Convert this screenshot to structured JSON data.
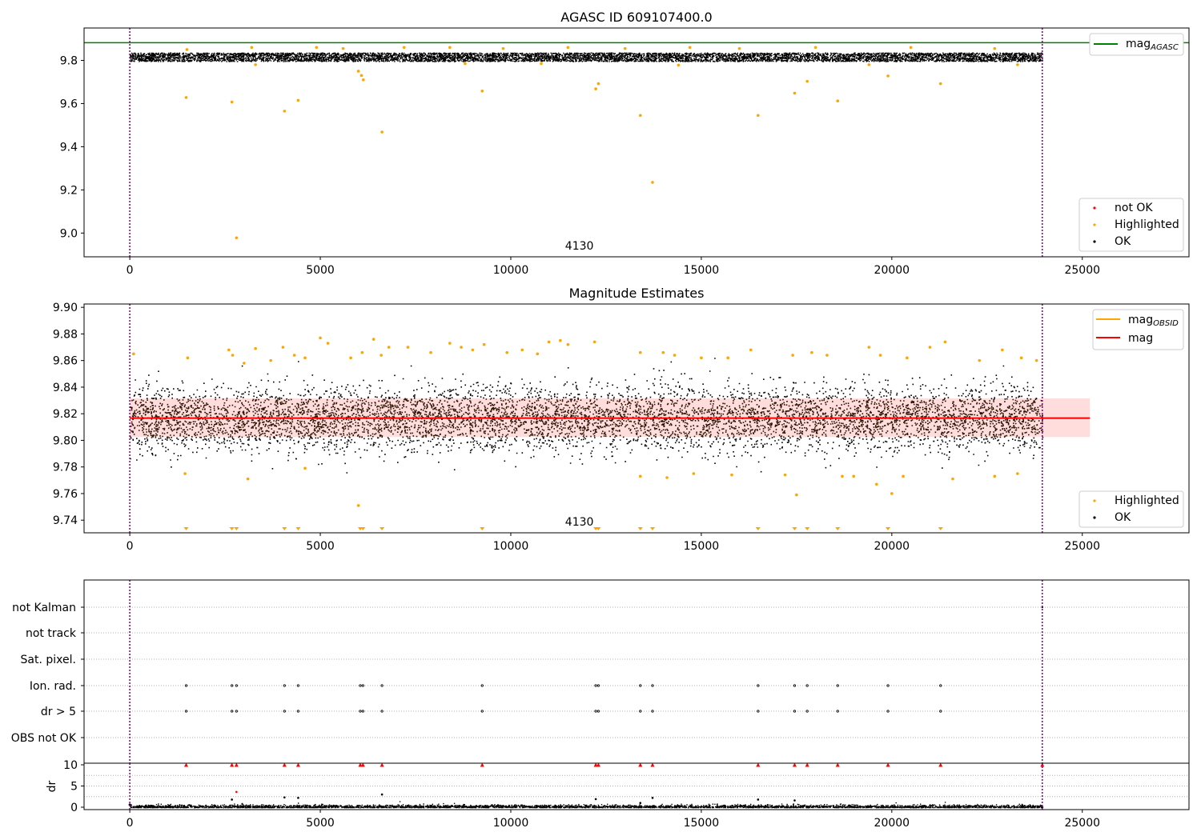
{
  "chart_data": [
    {
      "type": "scatter",
      "title": "AGASC ID 609107400.0",
      "xlim": [
        -1200,
        27800
      ],
      "ylim": [
        8.89,
        9.95
      ],
      "x_ticks": [
        0,
        5000,
        10000,
        15000,
        20000,
        25000
      ],
      "y_ticks": [
        9.0,
        9.2,
        9.4,
        9.6,
        9.8
      ],
      "x_tick_labels": [
        "0",
        "5000",
        "10000",
        "15000",
        "20000",
        "25000"
      ],
      "y_tick_labels": [
        "9.0",
        "9.2",
        "9.4",
        "9.6",
        "9.8"
      ],
      "reference_line": {
        "label": "mag",
        "label_sub": "AGASC",
        "y": 9.882,
        "color": "#008000"
      },
      "obs_boundaries": [
        0,
        23950
      ],
      "boundary_color": "#800080",
      "annotation": {
        "text": "4130",
        "x": 11800
      },
      "ok_band": {
        "center": 9.817,
        "half_width": 0.02,
        "x_end": 23950
      },
      "legend_lines": [
        {
          "label": "mag",
          "sub": "AGASC",
          "color": "#008000"
        }
      ],
      "legend_points": [
        {
          "label": "not OK",
          "color": "#ff0000"
        },
        {
          "label": "Highlighted",
          "color": "#ffa500"
        },
        {
          "label": "OK",
          "color": "#000000"
        }
      ],
      "highlighted_points": [
        [
          1480,
          9.628
        ],
        [
          2680,
          9.607
        ],
        [
          2800,
          8.978
        ],
        [
          4060,
          9.565
        ],
        [
          4420,
          9.615
        ],
        [
          6000,
          9.75
        ],
        [
          6080,
          9.73
        ],
        [
          6130,
          9.71
        ],
        [
          6620,
          9.468
        ],
        [
          9250,
          9.658
        ],
        [
          12230,
          9.668
        ],
        [
          12300,
          9.692
        ],
        [
          13400,
          9.545
        ],
        [
          13720,
          9.235
        ],
        [
          16490,
          9.545
        ],
        [
          17450,
          9.648
        ],
        [
          17780,
          9.703
        ],
        [
          18580,
          9.612
        ],
        [
          19900,
          9.728
        ],
        [
          21280,
          9.692
        ],
        [
          1500,
          9.85
        ],
        [
          3200,
          9.86
        ],
        [
          4900,
          9.86
        ],
        [
          5600,
          9.855
        ],
        [
          7200,
          9.86
        ],
        [
          8400,
          9.86
        ],
        [
          9800,
          9.855
        ],
        [
          11500,
          9.86
        ],
        [
          13000,
          9.855
        ],
        [
          14700,
          9.86
        ],
        [
          16000,
          9.855
        ],
        [
          18000,
          9.86
        ],
        [
          19400,
          9.78
        ],
        [
          20500,
          9.86
        ],
        [
          22700,
          9.855
        ],
        [
          23300,
          9.78
        ],
        [
          3300,
          9.78
        ],
        [
          8800,
          9.785
        ],
        [
          10800,
          9.785
        ],
        [
          14400,
          9.778
        ]
      ]
    },
    {
      "type": "scatter",
      "title": "Magnitude Estimates",
      "xlim": [
        -1200,
        27800
      ],
      "ylim": [
        9.7305,
        9.9025
      ],
      "x_ticks": [
        0,
        5000,
        10000,
        15000,
        20000,
        25000
      ],
      "y_ticks": [
        9.74,
        9.76,
        9.78,
        9.8,
        9.82,
        9.84,
        9.86,
        9.88,
        9.9
      ],
      "x_tick_labels": [
        "0",
        "5000",
        "10000",
        "15000",
        "20000",
        "25000"
      ],
      "y_tick_labels": [
        "9.74",
        "9.76",
        "9.78",
        "9.80",
        "9.82",
        "9.84",
        "9.86",
        "9.88",
        "9.90"
      ],
      "obs_mean_line": {
        "label": "mag",
        "label_sub": "OBSID",
        "y": 9.8167,
        "color": "#ffa500"
      },
      "mag_line": {
        "label": "mag",
        "y": 9.8167,
        "x_end": 25200,
        "color": "#ff0000"
      },
      "mag_band": {
        "y0": 9.8025,
        "y1": 9.8315,
        "x_end": 25200,
        "color": "#ffdddd"
      },
      "obs_boundaries": [
        0,
        23950
      ],
      "boundary_color": "#800080",
      "annotation": {
        "text": "4130",
        "x": 11800
      },
      "legend_lines": [
        {
          "label": "mag",
          "sub": "OBSID",
          "color": "#ffa500"
        },
        {
          "label": "mag",
          "sub": "",
          "color": "#ff0000"
        }
      ],
      "legend_points": [
        {
          "label": "Highlighted",
          "color": "#ffa500"
        },
        {
          "label": "OK",
          "color": "#000000"
        }
      ],
      "offscale_markers_x": [
        1480,
        2680,
        2800,
        4060,
        4420,
        6050,
        6120,
        6620,
        9250,
        12230,
        12300,
        13400,
        13720,
        16490,
        17450,
        17780,
        18580,
        19900,
        21280
      ],
      "highlighted_points": [
        [
          100,
          9.865
        ],
        [
          1520,
          9.862
        ],
        [
          2600,
          9.868
        ],
        [
          2700,
          9.864
        ],
        [
          3000,
          9.858
        ],
        [
          3300,
          9.869
        ],
        [
          3700,
          9.86
        ],
        [
          4020,
          9.87
        ],
        [
          4320,
          9.864
        ],
        [
          4600,
          9.862
        ],
        [
          5000,
          9.877
        ],
        [
          5200,
          9.873
        ],
        [
          5800,
          9.862
        ],
        [
          6100,
          9.866
        ],
        [
          6400,
          9.876
        ],
        [
          6600,
          9.864
        ],
        [
          6800,
          9.87
        ],
        [
          7300,
          9.87
        ],
        [
          7900,
          9.866
        ],
        [
          8400,
          9.873
        ],
        [
          8700,
          9.87
        ],
        [
          9000,
          9.868
        ],
        [
          9300,
          9.872
        ],
        [
          9900,
          9.866
        ],
        [
          10300,
          9.868
        ],
        [
          10700,
          9.865
        ],
        [
          11000,
          9.874
        ],
        [
          11300,
          9.875
        ],
        [
          11500,
          9.872
        ],
        [
          12200,
          9.874
        ],
        [
          13400,
          9.866
        ],
        [
          14000,
          9.866
        ],
        [
          14300,
          9.864
        ],
        [
          15000,
          9.862
        ],
        [
          15700,
          9.862
        ],
        [
          16300,
          9.868
        ],
        [
          17400,
          9.864
        ],
        [
          17900,
          9.866
        ],
        [
          18300,
          9.864
        ],
        [
          19400,
          9.87
        ],
        [
          19700,
          9.864
        ],
        [
          20400,
          9.862
        ],
        [
          21000,
          9.87
        ],
        [
          21400,
          9.874
        ],
        [
          22300,
          9.86
        ],
        [
          22900,
          9.868
        ],
        [
          23400,
          9.862
        ],
        [
          23800,
          9.86
        ],
        [
          1450,
          9.775
        ],
        [
          3100,
          9.771
        ],
        [
          4600,
          9.779
        ],
        [
          6000,
          9.751
        ],
        [
          13400,
          9.773
        ],
        [
          14100,
          9.772
        ],
        [
          14800,
          9.775
        ],
        [
          15800,
          9.774
        ],
        [
          17200,
          9.774
        ],
        [
          17500,
          9.759
        ],
        [
          18700,
          9.773
        ],
        [
          19000,
          9.773
        ],
        [
          19600,
          9.767
        ],
        [
          20000,
          9.76
        ],
        [
          20300,
          9.773
        ],
        [
          21600,
          9.771
        ],
        [
          22700,
          9.773
        ],
        [
          23300,
          9.775
        ]
      ]
    },
    {
      "type": "scatter",
      "title": "",
      "xlim": [
        -1200,
        27800
      ],
      "categories": [
        "not Kalman",
        "not track",
        "Sat. pixel.",
        "Ion. rad.",
        "dr > 5",
        "OBS not OK"
      ],
      "obs_boundaries": [
        0,
        23950
      ],
      "boundary_color": "#800080",
      "flag_ion_rad_x": [
        1480,
        2680,
        2800,
        4060,
        4420,
        6050,
        6120,
        6620,
        9250,
        12230,
        12300,
        13400,
        13720,
        16490,
        17450,
        17780,
        18580,
        19900,
        21280
      ],
      "flag_dr5_x": [
        1480,
        2680,
        2800,
        4060,
        4420,
        6050,
        6120,
        6620,
        9250,
        12230,
        12300,
        13400,
        13720,
        16490,
        17450,
        17780,
        18580,
        19900,
        21280
      ]
    },
    {
      "type": "scatter",
      "title": "",
      "ylabel": "dr",
      "xlim": [
        -1200,
        27800
      ],
      "ylim": [
        -0.5,
        10.5
      ],
      "x_ticks": [
        0,
        5000,
        10000,
        15000,
        20000,
        25000
      ],
      "y_ticks": [
        0,
        5,
        10
      ],
      "x_tick_labels": [
        "0",
        "5000",
        "10000",
        "15000",
        "20000",
        "25000"
      ],
      "y_tick_labels": [
        "0",
        "5",
        "10"
      ],
      "obs_boundaries": [
        0,
        23950
      ],
      "boundary_color": "#800080",
      "capped_markers_x": [
        1480,
        2680,
        2800,
        4060,
        4420,
        6050,
        6120,
        6620,
        9250,
        12230,
        12300,
        13400,
        13720,
        16490,
        17450,
        17780,
        18580,
        19900,
        21280,
        23950
      ],
      "scattered_points": [
        [
          2800,
          3.6
        ],
        [
          6620,
          3.0
        ],
        [
          2680,
          1.8
        ],
        [
          4060,
          2.3
        ],
        [
          4420,
          2.2
        ],
        [
          12230,
          1.9
        ],
        [
          13720,
          2.2
        ],
        [
          16490,
          1.8
        ],
        [
          17450,
          1.6
        ],
        [
          13400,
          1.0
        ]
      ]
    }
  ]
}
